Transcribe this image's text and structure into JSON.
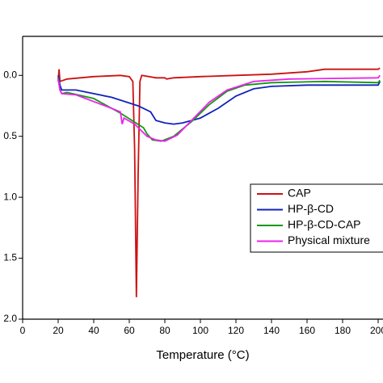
{
  "chart_data": {
    "type": "line",
    "x_label": "Temperature (°C)",
    "xlim": [
      0,
      201
    ],
    "xticks": [
      0,
      20,
      40,
      60,
      80,
      100,
      120,
      140,
      160,
      180,
      200
    ],
    "ylim": [
      -2.0,
      0.32
    ],
    "yticks": [
      {
        "value": 0,
        "label": "0.0"
      },
      {
        "value": -0.5,
        "label": "0.5"
      },
      {
        "value": -1.0,
        "label": "1.0"
      },
      {
        "value": -1.5,
        "label": "1.5"
      },
      {
        "value": -2.0,
        "label": "2.0"
      }
    ],
    "series": [
      {
        "name": "CAP",
        "color": "#cc1111",
        "x": [
          20,
          20.5,
          21,
          25,
          40,
          55,
          60,
          62,
          63,
          64,
          65,
          66,
          67,
          75,
          80,
          81,
          85,
          100,
          120,
          140,
          160,
          170,
          200,
          201
        ],
        "values": [
          -0.05,
          0.05,
          -0.05,
          -0.03,
          -0.01,
          0.0,
          -0.01,
          -0.05,
          -0.6,
          -1.82,
          -0.8,
          -0.05,
          0.0,
          -0.02,
          -0.02,
          -0.03,
          -0.02,
          -0.01,
          0.0,
          0.01,
          0.03,
          0.05,
          0.05,
          0.06
        ]
      },
      {
        "name": "HP-β-CD",
        "color": "#1122bb",
        "x": [
          20,
          21,
          22,
          30,
          50,
          65,
          72,
          75,
          80,
          85,
          90,
          100,
          110,
          120,
          130,
          140,
          160,
          200,
          201
        ],
        "values": [
          0.0,
          -0.08,
          -0.12,
          -0.12,
          -0.18,
          -0.25,
          -0.3,
          -0.37,
          -0.39,
          -0.4,
          -0.39,
          -0.35,
          -0.27,
          -0.17,
          -0.11,
          -0.09,
          -0.08,
          -0.08,
          -0.05
        ]
      },
      {
        "name": "HP-β-CD-CAP",
        "color": "#119911",
        "x": [
          20,
          21,
          22,
          25,
          40,
          55,
          68,
          70,
          73,
          78,
          85,
          95,
          105,
          115,
          125,
          140,
          170,
          200,
          201
        ],
        "values": [
          -0.02,
          -0.12,
          -0.15,
          -0.14,
          -0.19,
          -0.31,
          -0.43,
          -0.48,
          -0.53,
          -0.54,
          -0.5,
          -0.38,
          -0.24,
          -0.13,
          -0.08,
          -0.06,
          -0.05,
          -0.06,
          -0.04
        ]
      },
      {
        "name": "Physical mixture",
        "color": "#ee22ee",
        "x": [
          20,
          21,
          22,
          30,
          50,
          55,
          56,
          57,
          63,
          70,
          75,
          80,
          87,
          95,
          105,
          115,
          130,
          150,
          200,
          201
        ],
        "values": [
          -0.03,
          -0.12,
          -0.15,
          -0.16,
          -0.27,
          -0.3,
          -0.4,
          -0.35,
          -0.4,
          -0.5,
          -0.53,
          -0.54,
          -0.49,
          -0.37,
          -0.22,
          -0.12,
          -0.05,
          -0.03,
          -0.02,
          0.0
        ]
      }
    ]
  }
}
